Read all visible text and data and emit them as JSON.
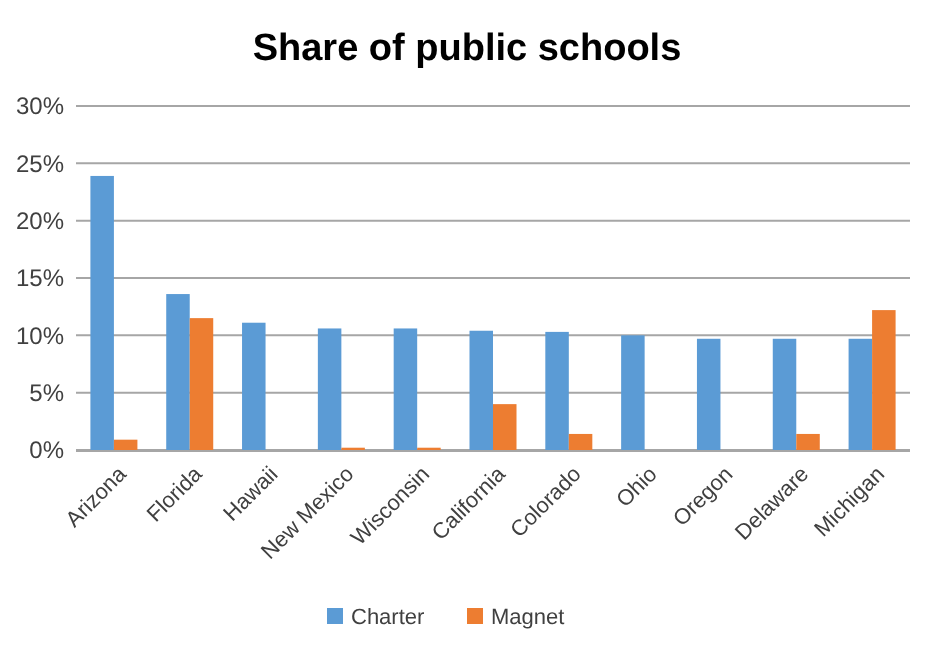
{
  "chart_data": {
    "type": "bar",
    "title": "Share of public schools",
    "categories": [
      "Arizona",
      "Florida",
      "Hawaii",
      "New Mexico",
      "Wisconsin",
      "California",
      "Colorado",
      "Ohio",
      "Oregon",
      "Delaware",
      "Michigan"
    ],
    "series": [
      {
        "name": "Charter",
        "color": "#5b9bd5",
        "values": [
          23.9,
          13.6,
          11.1,
          10.6,
          10.6,
          10.4,
          10.3,
          10.0,
          9.7,
          9.7,
          9.7
        ]
      },
      {
        "name": "Magnet",
        "color": "#ed7d31",
        "values": [
          0.9,
          11.5,
          0,
          0.2,
          0.2,
          4.0,
          1.4,
          0,
          0,
          1.4,
          12.2
        ]
      }
    ],
    "ylim": [
      0,
      30
    ],
    "yticks": [
      {
        "value": 0,
        "label": "0%"
      },
      {
        "value": 5,
        "label": "5%"
      },
      {
        "value": 10,
        "label": "10%"
      },
      {
        "value": 15,
        "label": "15%"
      },
      {
        "value": 20,
        "label": "20%"
      },
      {
        "value": 25,
        "label": "25%"
      },
      {
        "value": 30,
        "label": "30%"
      }
    ],
    "grid": "y",
    "legend": "bottom"
  }
}
